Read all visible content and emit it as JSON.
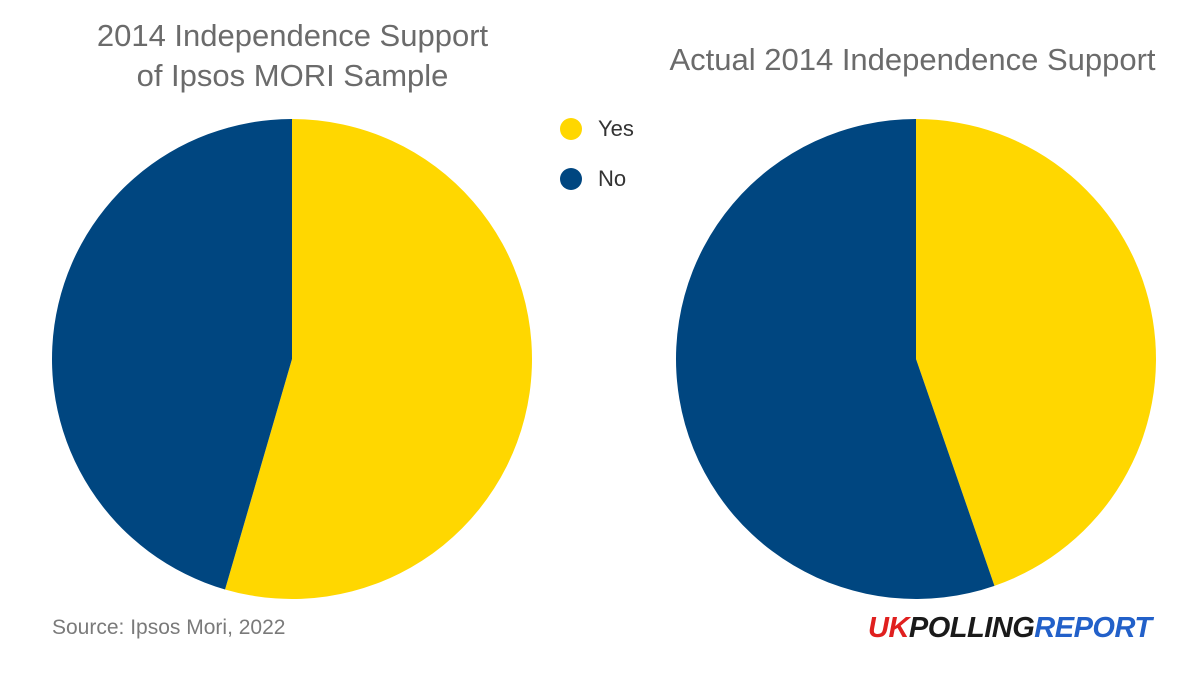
{
  "colors": {
    "yes": "#FFD700",
    "no": "#004680"
  },
  "chart_data": [
    {
      "type": "pie",
      "title": "2014 Independence Support\nof Ipsos MORI Sample",
      "labels": [
        "Yes",
        "No"
      ],
      "values": [
        54.5,
        45.5
      ],
      "legend": "top-right"
    },
    {
      "type": "pie",
      "title": "Actual 2014 Independence Support",
      "labels": [
        "Yes",
        "No"
      ],
      "values": [
        44.7,
        55.3
      ],
      "legend": "top-left"
    }
  ],
  "legend": {
    "items": [
      {
        "label": "Yes"
      },
      {
        "label": "No"
      }
    ]
  },
  "footer": {
    "source": "Source: Ipsos Mori, 2022",
    "brand": {
      "uk": "UK",
      "polling": "POLLING",
      "report": "REPORT"
    }
  }
}
